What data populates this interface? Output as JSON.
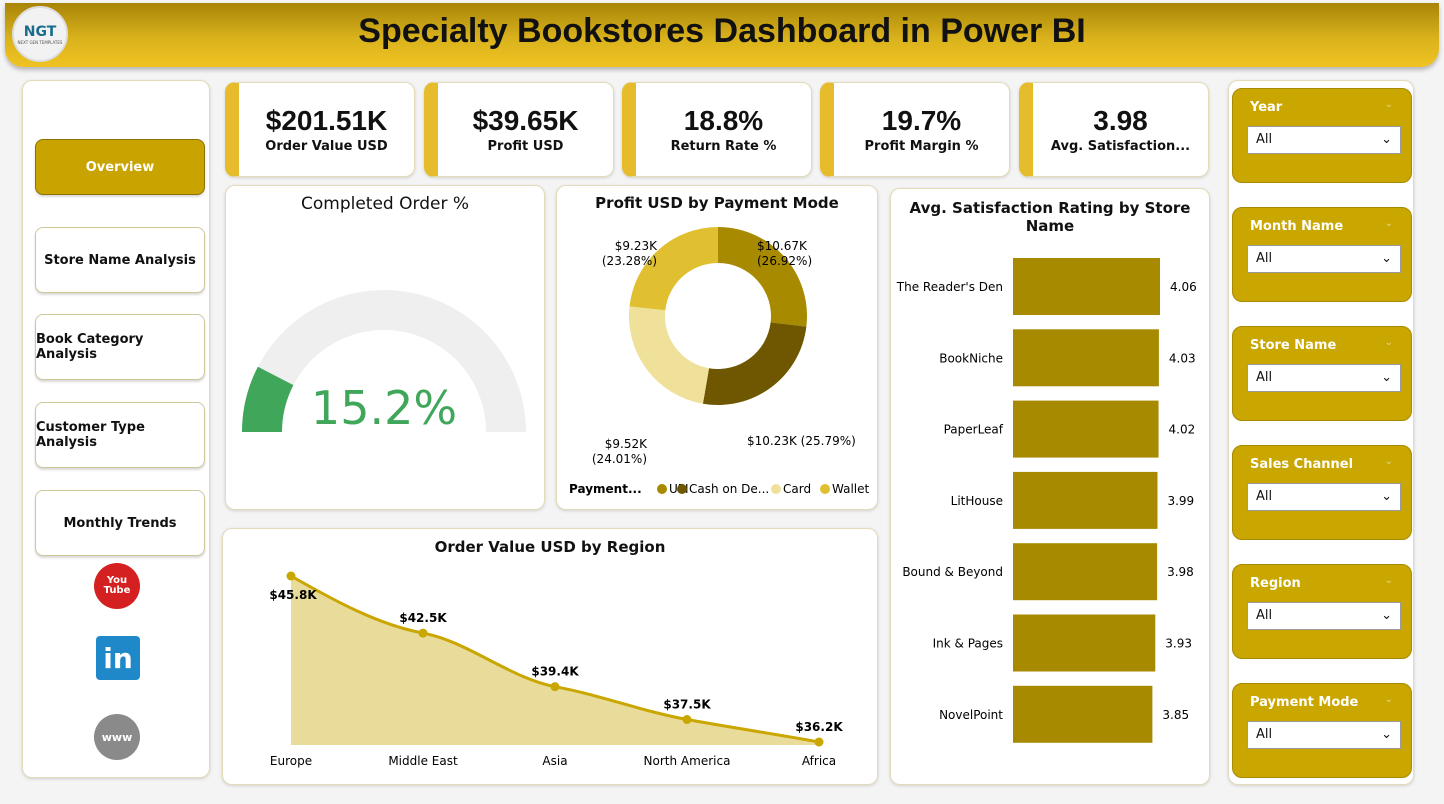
{
  "header": {
    "title": "Specialty Bookstores Dashboard in Power BI",
    "logo_text": "NGT",
    "logo_sub": "NEXT GEN TEMPLATES"
  },
  "nav": {
    "items": [
      {
        "label": "Overview",
        "active": true
      },
      {
        "label": "Store Name Analysis"
      },
      {
        "label": "Book Category Analysis"
      },
      {
        "label": "Customer Type Analysis"
      },
      {
        "label": "Monthly Trends"
      }
    ],
    "social": [
      {
        "icon": "youtube-icon",
        "label": "You Tube"
      },
      {
        "icon": "linkedin-icon",
        "label": "in"
      },
      {
        "icon": "website-icon",
        "label": "www"
      }
    ]
  },
  "kpis": [
    {
      "value": "$201.51K",
      "label": "Order Value USD"
    },
    {
      "value": "$39.65K",
      "label": "Profit USD"
    },
    {
      "value": "18.8%",
      "label": "Return Rate %"
    },
    {
      "value": "19.7%",
      "label": "Profit Margin %"
    },
    {
      "value": "3.98",
      "label": "Avg. Satisfaction..."
    }
  ],
  "gauge": {
    "title": "Completed Order %",
    "value": "15.2%",
    "fraction": 0.152,
    "color": "#3fa65a"
  },
  "filters": [
    {
      "label": "Year",
      "value": "All"
    },
    {
      "label": "Month Name",
      "value": "All"
    },
    {
      "label": "Store Name",
      "value": "All"
    },
    {
      "label": "Sales Channel",
      "value": "All"
    },
    {
      "label": "Region",
      "value": "All"
    },
    {
      "label": "Payment Mode",
      "value": "All"
    }
  ],
  "chart_data": [
    {
      "type": "pie",
      "title": "Profit USD by Payment Mode",
      "legend_title": "Payment...",
      "legend_position": "bottom",
      "slices": [
        {
          "name": "UPI",
          "value": 10.67,
          "label": "$10.67K",
          "pct": "(26.92%)",
          "color": "#a88a00"
        },
        {
          "name": "Cash on De...",
          "value": 10.23,
          "label": "$10.23K",
          "pct": "(25.79%)",
          "color": "#6e5700"
        },
        {
          "name": "Card",
          "value": 9.52,
          "label": "$9.52K",
          "pct": "(24.01%)",
          "color": "#efe09a"
        },
        {
          "name": "Wallet",
          "value": 9.23,
          "label": "$9.23K",
          "pct": "(23.28%)",
          "color": "#e0bf30"
        }
      ]
    },
    {
      "type": "bar",
      "title": "Avg. Satisfaction Rating by Store Name",
      "orientation": "horizontal",
      "color": "#a88a00",
      "categories": [
        "The Reader's Den",
        "BookNiche",
        "PaperLeaf",
        "LitHouse",
        "Bound & Beyond",
        "Ink & Pages",
        "NovelPoint"
      ],
      "values": [
        4.06,
        4.03,
        4.02,
        3.99,
        3.98,
        3.93,
        3.85
      ],
      "labels": [
        "4.06",
        "4.03",
        "4.02",
        "3.99",
        "3.98",
        "3.93",
        "3.85"
      ]
    },
    {
      "type": "area",
      "title": "Order Value USD by Region",
      "color": "#c9a600",
      "fill": "#e9dc9a",
      "categories": [
        "Europe",
        "Middle East",
        "Asia",
        "North America",
        "Africa"
      ],
      "values": [
        45.8,
        42.5,
        39.4,
        37.5,
        36.2
      ],
      "labels": [
        "$45.8K",
        "$42.5K",
        "$39.4K",
        "$37.5K",
        "$36.2K"
      ]
    }
  ]
}
